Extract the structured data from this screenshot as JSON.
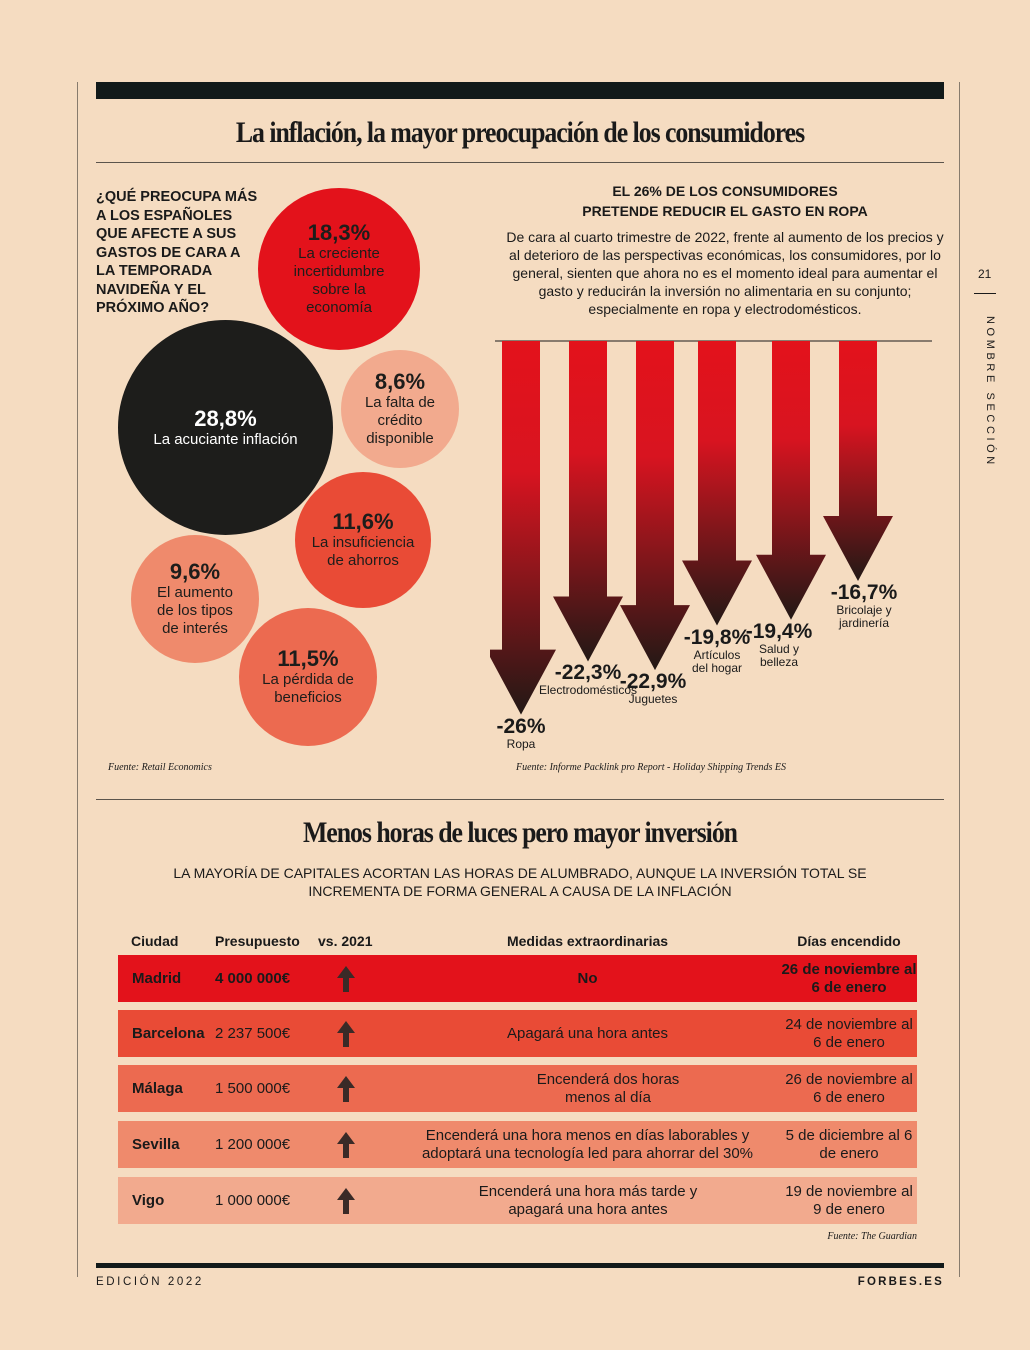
{
  "page": {
    "page_number": "21",
    "section": "NOMBRE SECCIÓN",
    "footer_left": "EDICIÓN 2022",
    "footer_right": "FORBES.ES"
  },
  "section1": {
    "title": "La inflación, la mayor preocupación de los consumidores",
    "question": "¿Qué preocupa más a los españoles que afecte a sus gastos de cara a la temporada navideña y el próximo año?",
    "bubbles": [
      {
        "pct": "18,3%",
        "label": "La creciente incertidumbre sobre la economía",
        "color": "#e3121b"
      },
      {
        "pct": "28,8%",
        "label": "La acuciante inflación",
        "color": "#1d1d1b"
      },
      {
        "pct": "8,6%",
        "label": "La falta de crédito disponible",
        "color": "#f2aa8e"
      },
      {
        "pct": "11,6%",
        "label": "La insuficiencia de ahorros",
        "color": "#e94b36"
      },
      {
        "pct": "9,6%",
        "label": "El aumento de los tipos de interés",
        "color": "#ef8a6c"
      },
      {
        "pct": "11,5%",
        "label": "La pérdida de beneficios",
        "color": "#ec6a50"
      }
    ],
    "source_left": "Fuente: Retail Economics",
    "right_heading": "EL 26% DE LOS CONSUMIDORES PRETENDE REDUCIR EL GASTO EN ROPA",
    "right_text": "De cara al cuarto trimestre de 2022, frente al aumento de los precios y al deterioro de las perspectivas económicas, los consumidores, por lo general, sienten que ahora no es el momento ideal para aumentar el gasto y reducirán la inversión no alimentaria en su conjunto; especialmente en ropa y electrodomésticos.",
    "source_right": "Fuente: Informe Packlink pro Report - Holiday Shipping Trends ES"
  },
  "chart_data": {
    "type": "bar",
    "title": "EL 26% DE LOS CONSUMIDORES PRETENDE REDUCIR EL GASTO EN ROPA",
    "categories": [
      "Ropa",
      "Electrodomésticos",
      "Juguetes",
      "Artículos del hogar",
      "Salud y belleza",
      "Bricolaje y jardinería"
    ],
    "values": [
      -26,
      -22.3,
      -22.9,
      -19.8,
      -19.4,
      -16.7
    ],
    "value_labels": [
      "-26%",
      "-22,3%",
      "-22,9%",
      "-19,8%",
      "-19,4%",
      "-16,7%"
    ],
    "colors": {
      "top": "#e3121b",
      "bottom": "#1d1d1b"
    }
  },
  "section2": {
    "title": "Menos horas de luces pero mayor inversión",
    "subtitle": "LA MAYORÍA DE CAPITALES ACORTAN LAS HORAS DE ALUMBRADO, AUNQUE LA INVERSIÓN TOTAL SE INCREMENTA DE FORMA GENERAL A CAUSA DE LA INFLACIÓN",
    "headers": {
      "city": "Ciudad",
      "budget": "Presupuesto",
      "vs": "vs. 2021",
      "measures": "Medidas extraordinarias",
      "days": "Días encendido"
    },
    "rows": [
      {
        "city": "Madrid",
        "budget": "4 000 000€",
        "measure": "No",
        "days": "26 de noviembre al 6 de enero",
        "color": "#e3121b",
        "bold": true
      },
      {
        "city": "Barcelona",
        "budget": "2 237 500€",
        "measure": "Apagará una hora antes",
        "days": "24 de noviembre al 6 de enero",
        "color": "#e94b36",
        "bold": false
      },
      {
        "city": "Málaga",
        "budget": "1 500 000€",
        "measure": "Encenderá dos horas menos al día",
        "days": "26 de noviembre al 6 de enero",
        "color": "#ec6a50",
        "bold": false
      },
      {
        "city": "Sevilla",
        "budget": "1 200 000€",
        "measure": "Encenderá una hora menos en días laborables y adoptará una tecnología led para ahorrar del 30%",
        "days": "5 de diciembre al 6 de enero",
        "color": "#ef8a6c",
        "bold": false
      },
      {
        "city": "Vigo",
        "budget": "1 000 000€",
        "measure": "Encenderá una hora más tarde y apagará una hora antes",
        "days": "19 de noviembre al 9 de enero",
        "color": "#f2aa8e",
        "bold": false
      }
    ],
    "source": "Fuente: The Guardian"
  }
}
